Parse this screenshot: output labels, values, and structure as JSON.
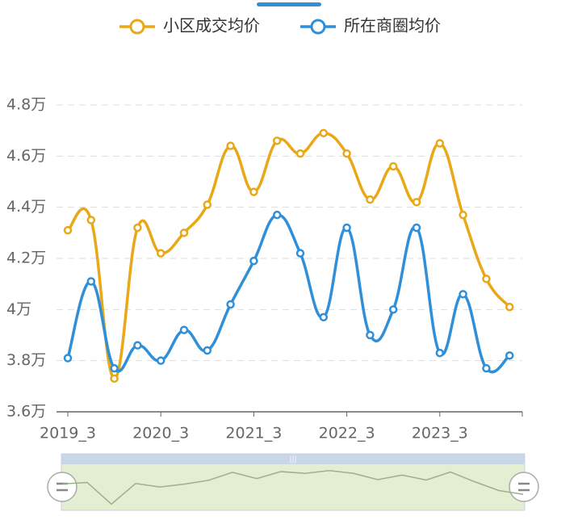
{
  "chart_data": {
    "type": "line",
    "categories": [
      "2019_3",
      null,
      null,
      null,
      "2020_3",
      null,
      null,
      null,
      "2021_3",
      null,
      null,
      null,
      "2022_3",
      null,
      null,
      null,
      "2023_3",
      null,
      null,
      null
    ],
    "series": [
      {
        "name": "小区成交均价",
        "color": "#e8a817",
        "values": [
          4.31,
          4.35,
          3.73,
          4.32,
          4.22,
          4.3,
          4.41,
          4.64,
          4.46,
          4.66,
          4.61,
          4.69,
          4.61,
          4.43,
          4.56,
          4.42,
          4.65,
          4.37,
          4.12,
          4.01
        ]
      },
      {
        "name": "所在商圈均价",
        "color": "#2f8fd8",
        "values": [
          3.81,
          4.11,
          3.77,
          3.86,
          3.8,
          3.92,
          3.84,
          4.02,
          4.19,
          4.37,
          4.22,
          3.97,
          4.32,
          3.9,
          4.0,
          4.32,
          3.83,
          4.06,
          3.77,
          3.82
        ]
      }
    ],
    "ylim": [
      3.6,
      4.8
    ],
    "yticks": [
      {
        "value": 3.6,
        "label": "3.6万"
      },
      {
        "value": 3.8,
        "label": "3.8万"
      },
      {
        "value": 4,
        "label": "4万"
      },
      {
        "value": 4.2,
        "label": "4.2万"
      },
      {
        "value": 4.4,
        "label": "4.4万"
      },
      {
        "value": 4.6,
        "label": "4.6万"
      },
      {
        "value": 4.8,
        "label": "4.8万"
      }
    ],
    "grid": true
  }
}
